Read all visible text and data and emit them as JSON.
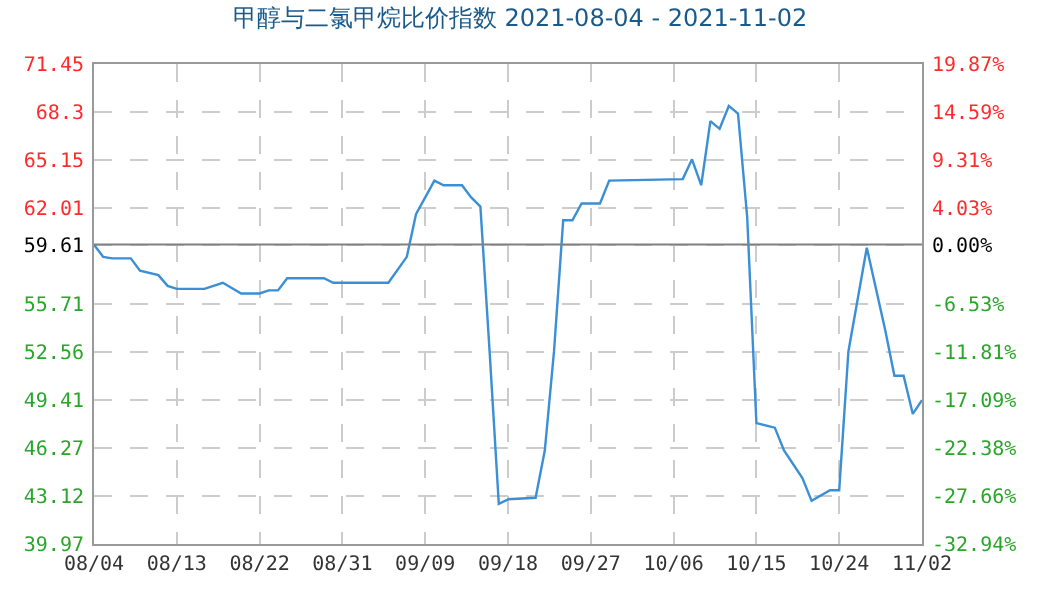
{
  "chart_data": {
    "type": "line",
    "title": "甲醇与二氯甲烷比价指数 2021-08-04 - 2021-11-02",
    "x": [
      "2021-08-04",
      "2021-08-05",
      "2021-08-06",
      "2021-08-08",
      "2021-08-09",
      "2021-08-11",
      "2021-08-12",
      "2021-08-13",
      "2021-08-16",
      "2021-08-18",
      "2021-08-20",
      "2021-08-22",
      "2021-08-23",
      "2021-08-24",
      "2021-08-25",
      "2021-08-29",
      "2021-08-30",
      "2021-09-05",
      "2021-09-07",
      "2021-09-08",
      "2021-09-10",
      "2021-09-11",
      "2021-09-13",
      "2021-09-14",
      "2021-09-15",
      "2021-09-16",
      "2021-09-17",
      "2021-09-18",
      "2021-09-21",
      "2021-09-22",
      "2021-09-23",
      "2021-09-24",
      "2021-09-25",
      "2021-09-26",
      "2021-09-28",
      "2021-09-29",
      "2021-10-07",
      "2021-10-08",
      "2021-10-09",
      "2021-10-10",
      "2021-10-11",
      "2021-10-12",
      "2021-10-13",
      "2021-10-14",
      "2021-10-15",
      "2021-10-17",
      "2021-10-18",
      "2021-10-20",
      "2021-10-21",
      "2021-10-23",
      "2021-10-24",
      "2021-10-25",
      "2021-10-27",
      "2021-10-29",
      "2021-10-30",
      "2021-10-31",
      "2021-11-01",
      "2021-11-02"
    ],
    "series": [
      {
        "color": "#3a8fd6",
        "values": [
          59.6,
          58.8,
          58.7,
          58.7,
          57.9,
          57.6,
          56.9,
          56.7,
          56.7,
          57.1,
          56.4,
          56.4,
          56.6,
          56.6,
          57.4,
          57.4,
          57.1,
          57.1,
          58.8,
          61.6,
          63.8,
          63.5,
          63.5,
          62.7,
          62.1,
          52.6,
          42.6,
          42.9,
          43.0,
          46.1,
          52.6,
          61.2,
          61.2,
          62.3,
          62.3,
          63.8,
          63.9,
          65.2,
          63.5,
          67.7,
          67.2,
          68.7,
          68.2,
          61.4,
          47.9,
          47.6,
          46.1,
          44.3,
          42.8,
          43.5,
          43.5,
          52.6,
          59.4,
          54.0,
          51.0,
          51.0,
          48.5,
          49.4
        ]
      }
    ],
    "xlim": [
      "2021-08-04",
      "2021-11-02"
    ],
    "xticks": [
      {
        "value": "2021-08-04",
        "label": "08/04"
      },
      {
        "value": "2021-08-13",
        "label": "08/13"
      },
      {
        "value": "2021-08-22",
        "label": "08/22"
      },
      {
        "value": "2021-08-31",
        "label": "08/31"
      },
      {
        "value": "2021-09-09",
        "label": "09/09"
      },
      {
        "value": "2021-09-18",
        "label": "09/18"
      },
      {
        "value": "2021-09-27",
        "label": "09/27"
      },
      {
        "value": "2021-10-06",
        "label": "10/06"
      },
      {
        "value": "2021-10-15",
        "label": "10/15"
      },
      {
        "value": "2021-10-24",
        "label": "10/24"
      },
      {
        "value": "2021-11-02",
        "label": "11/02"
      }
    ],
    "ylim": [
      39.97,
      71.45
    ],
    "yticks": [
      39.97,
      43.12,
      46.27,
      49.41,
      52.56,
      55.71,
      59.61,
      62.01,
      65.15,
      {
        "value": 68.3,
        "label": "68.3"
      },
      71.45
    ],
    "y2lim": [
      -32.94,
      19.87
    ],
    "y2ticks": [
      {
        "value": -32.94,
        "label": "-32.94%"
      },
      {
        "value": -27.66,
        "label": "-27.66%"
      },
      {
        "value": -22.38,
        "label": "-22.38%"
      },
      {
        "value": -17.09,
        "label": "-17.09%"
      },
      {
        "value": -11.81,
        "label": "-11.81%"
      },
      {
        "value": -6.53,
        "label": "-6.53%"
      },
      {
        "value": 0,
        "label": "0.00%"
      },
      {
        "value": 4.03,
        "label": "4.03%"
      },
      {
        "value": 9.31,
        "label": "9.31%"
      },
      {
        "value": 14.59,
        "label": "14.59%"
      },
      {
        "value": 19.87,
        "label": "19.87%"
      }
    ],
    "ref_lines": [
      {
        "axis": "y",
        "value": 59.61,
        "color": "#808080"
      }
    ],
    "grid": true,
    "marker": "none",
    "line_style": "solid"
  }
}
